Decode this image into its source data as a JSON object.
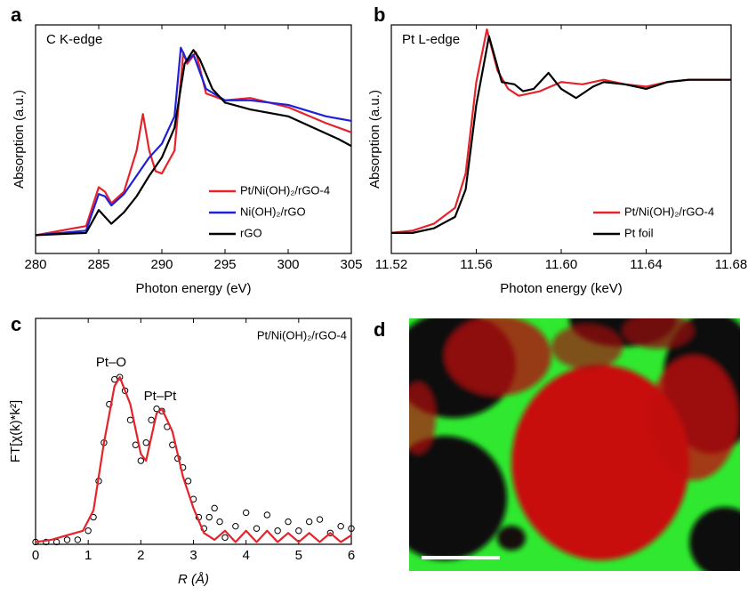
{
  "chart_data": [
    {
      "type": "line",
      "panel_label": "a",
      "label": "C K-edge",
      "xlabel": "Photon energy (eV)",
      "ylabel": "Absorption (a.u.)",
      "xlim": [
        280,
        305
      ],
      "xticks": [
        280,
        285,
        290,
        295,
        300,
        305
      ],
      "ylim": [
        0,
        1
      ],
      "legend": "lower right",
      "series": [
        {
          "name": "Pt/Ni(OH)₂/rGO-4",
          "color": "#e4232b",
          "x": [
            280,
            284,
            285,
            285.5,
            286,
            287,
            288,
            288.5,
            289,
            289.5,
            290,
            291,
            291.7,
            292,
            292.7,
            293.5,
            295,
            297,
            300,
            303,
            305
          ],
          "values": [
            0.08,
            0.12,
            0.29,
            0.27,
            0.22,
            0.27,
            0.45,
            0.61,
            0.45,
            0.36,
            0.35,
            0.45,
            0.88,
            0.83,
            0.88,
            0.7,
            0.67,
            0.68,
            0.64,
            0.57,
            0.53
          ]
        },
        {
          "name": "Ni(OH)₂/rGO",
          "color": "#2020d8",
          "x": [
            280,
            284,
            285,
            285.5,
            286,
            287,
            288,
            289,
            290,
            291,
            291.5,
            292,
            292.5,
            293.5,
            295,
            297,
            300,
            303,
            305
          ],
          "values": [
            0.08,
            0.1,
            0.26,
            0.25,
            0.21,
            0.26,
            0.34,
            0.42,
            0.48,
            0.6,
            0.9,
            0.84,
            0.87,
            0.72,
            0.67,
            0.67,
            0.65,
            0.6,
            0.58
          ]
        },
        {
          "name": "rGO",
          "color": "#000000",
          "x": [
            280,
            284,
            285,
            285.5,
            286,
            287,
            288,
            289,
            290,
            291,
            291.8,
            292.5,
            293,
            294,
            295,
            297,
            300,
            302,
            304,
            305
          ],
          "values": [
            0.08,
            0.09,
            0.19,
            0.16,
            0.13,
            0.18,
            0.25,
            0.34,
            0.42,
            0.55,
            0.83,
            0.89,
            0.85,
            0.72,
            0.66,
            0.63,
            0.6,
            0.55,
            0.5,
            0.47
          ]
        }
      ]
    },
    {
      "type": "line",
      "panel_label": "b",
      "label": "Pt L-edge",
      "xlabel": "Photon energy (keV)",
      "ylabel": "Absorption (a.u.)",
      "xlim": [
        11.52,
        11.68
      ],
      "xticks": [
        11.52,
        11.56,
        {
          "value": 11.6,
          "label": "11.60"
        },
        11.64,
        11.68
      ],
      "ylim": [
        0,
        1
      ],
      "legend": "lower right",
      "series": [
        {
          "name": "Pt/Ni(OH)₂/rGO-4",
          "color": "#e4232b",
          "x": [
            11.52,
            11.53,
            11.54,
            11.55,
            11.555,
            11.56,
            11.565,
            11.57,
            11.575,
            11.58,
            11.59,
            11.6,
            11.61,
            11.62,
            11.63,
            11.64,
            11.65,
            11.66,
            11.68
          ],
          "values": [
            0.09,
            0.1,
            0.13,
            0.2,
            0.35,
            0.75,
            0.98,
            0.8,
            0.72,
            0.69,
            0.71,
            0.75,
            0.74,
            0.76,
            0.74,
            0.73,
            0.75,
            0.76,
            0.76
          ]
        },
        {
          "name": "Pt foil",
          "color": "#000000",
          "x": [
            11.52,
            11.53,
            11.54,
            11.55,
            11.555,
            11.56,
            11.566,
            11.572,
            11.578,
            11.582,
            11.587,
            11.594,
            11.6,
            11.607,
            11.615,
            11.62,
            11.63,
            11.64,
            11.65,
            11.66,
            11.68
          ],
          "values": [
            0.09,
            0.09,
            0.11,
            0.16,
            0.28,
            0.65,
            0.95,
            0.75,
            0.74,
            0.71,
            0.72,
            0.79,
            0.72,
            0.68,
            0.73,
            0.75,
            0.74,
            0.72,
            0.75,
            0.76,
            0.76
          ]
        }
      ]
    },
    {
      "type": "line",
      "panel_label": "c",
      "label": "Pt/Ni(OH)₂/rGO-4",
      "xlabel": "R (Å)",
      "ylabel": "FT[χ(k)*k²]",
      "annotations": [
        "Pt–O",
        "Pt–Pt"
      ],
      "xlim": [
        0,
        6
      ],
      "xticks": [
        0,
        1,
        2,
        3,
        4,
        5,
        6
      ],
      "ylim": [
        0,
        1
      ],
      "series": [
        {
          "color": "#000000",
          "style": "markers",
          "x": [
            0,
            0.2,
            0.4,
            0.6,
            0.8,
            1.0,
            1.1,
            1.2,
            1.3,
            1.4,
            1.5,
            1.6,
            1.7,
            1.8,
            1.9,
            2.0,
            2.1,
            2.2,
            2.3,
            2.4,
            2.5,
            2.6,
            2.7,
            2.8,
            2.9,
            3.0,
            3.1,
            3.2,
            3.3,
            3.4,
            3.5,
            3.6,
            3.8,
            4.0,
            4.2,
            4.4,
            4.6,
            4.8,
            5.0,
            5.2,
            5.4,
            5.6,
            5.8,
            6.0
          ],
          "values": [
            0.01,
            0.01,
            0.01,
            0.02,
            0.02,
            0.06,
            0.12,
            0.28,
            0.45,
            0.62,
            0.73,
            0.74,
            0.68,
            0.55,
            0.44,
            0.37,
            0.45,
            0.55,
            0.6,
            0.59,
            0.52,
            0.44,
            0.38,
            0.34,
            0.28,
            0.2,
            0.12,
            0.07,
            0.12,
            0.16,
            0.1,
            0.03,
            0.08,
            0.14,
            0.07,
            0.13,
            0.06,
            0.1,
            0.06,
            0.1,
            0.11,
            0.05,
            0.08,
            0.07
          ]
        },
        {
          "color": "#e4232b",
          "style": "line",
          "x": [
            0,
            0.3,
            0.6,
            0.9,
            1.1,
            1.3,
            1.5,
            1.6,
            1.8,
            2.0,
            2.1,
            2.3,
            2.4,
            2.6,
            2.8,
            3.0,
            3.2,
            3.4,
            3.6,
            3.8,
            4.0,
            4.2,
            4.4,
            4.6,
            4.8,
            5.0,
            5.2,
            5.4,
            5.6,
            5.8,
            6.0
          ],
          "values": [
            0.01,
            0.02,
            0.04,
            0.06,
            0.15,
            0.45,
            0.7,
            0.74,
            0.62,
            0.4,
            0.37,
            0.58,
            0.6,
            0.5,
            0.3,
            0.16,
            0.05,
            0.02,
            0.06,
            0.01,
            0.06,
            0.01,
            0.06,
            0.01,
            0.05,
            0.01,
            0.05,
            0.01,
            0.05,
            0.01,
            0.04
          ]
        }
      ]
    }
  ],
  "image_panel": {
    "label": "d"
  }
}
